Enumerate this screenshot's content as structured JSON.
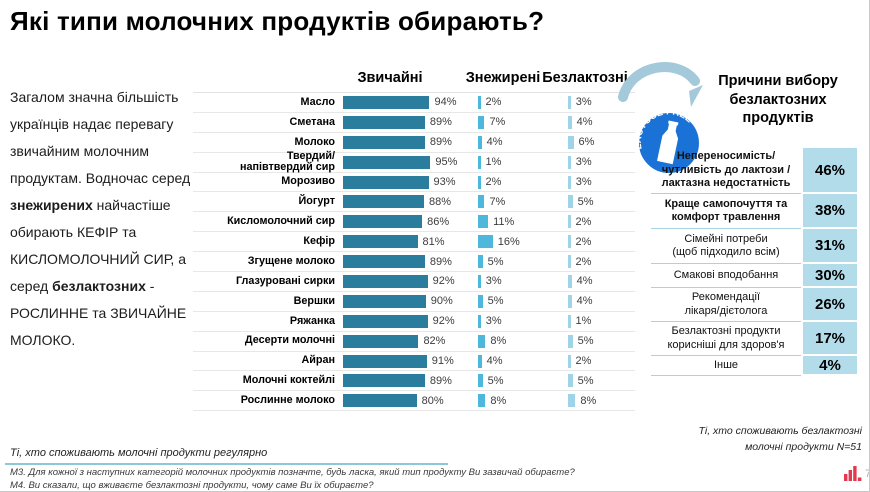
{
  "title": "Які типи молочних продуктів обирають?",
  "intro_parts": [
    {
      "text": "Загалом значна більшість українців надає перевагу звичайним молочним продуктам. Водночас серед ",
      "bold": false
    },
    {
      "text": "знежирених",
      "bold": true
    },
    {
      "text": " найчастіше обирають КЕФІР та КИСЛОМОЛОЧНИЙ СИР, а серед ",
      "bold": false
    },
    {
      "text": "безлактозних",
      "bold": true
    },
    {
      "text": " - РОСЛИННЕ та ЗВИЧАЙНЕ МОЛОКО.",
      "bold": false
    }
  ],
  "chart_data": {
    "type": "bar",
    "orientation": "horizontal",
    "unit": "%",
    "columns": [
      "Звичайні",
      "Знежирені",
      "Безлактозні"
    ],
    "categories": [
      "Масло",
      "Сметана",
      "Молоко",
      "Твердий/\nнапівтвердий сир",
      "Морозиво",
      "Йогурт",
      "Кисломолочний сир",
      "Кефір",
      "Згущене молоко",
      "Глазуровані сирки",
      "Вершки",
      "Ряжанка",
      "Десерти молочні",
      "Айран",
      "Молочні коктейлі",
      "Рослинне молоко"
    ],
    "series": [
      {
        "name": "Звичайні",
        "color": "#2a7d9c",
        "values": [
          94,
          89,
          89,
          95,
          93,
          88,
          86,
          81,
          89,
          92,
          90,
          92,
          82,
          91,
          89,
          80
        ]
      },
      {
        "name": "Знежирені",
        "color": "#4db8dc",
        "values": [
          2,
          7,
          4,
          1,
          2,
          7,
          11,
          16,
          5,
          3,
          5,
          3,
          8,
          4,
          5,
          8
        ]
      },
      {
        "name": "Безлактозні",
        "color": "#9fd4e8",
        "values": [
          3,
          4,
          6,
          3,
          3,
          5,
          2,
          2,
          2,
          4,
          4,
          1,
          5,
          2,
          5,
          8
        ]
      }
    ]
  },
  "reasons_panel": {
    "title": "Причини вибору безлактозних продуктів",
    "badge_text": "LACTOSE FREE",
    "items": [
      {
        "label": "Непереносимість/\nчутливість до лактози /\nлактазна недостатність",
        "value": "46%",
        "bold": true
      },
      {
        "label": "Краще самопочуття та\nкомфорт травлення",
        "value": "38%",
        "bold": true
      },
      {
        "label": "Сімейні потреби\n(щоб підходило всім)",
        "value": "31%",
        "bold": false
      },
      {
        "label": "Смакові вподобання",
        "value": "30%",
        "bold": false
      },
      {
        "label": "Рекомендації\nлікаря/дієтолога",
        "value": "26%",
        "bold": false
      },
      {
        "label": "Безлактозні продукти\nкорисніші для здоров'я",
        "value": "17%",
        "bold": false
      },
      {
        "label": "Інше",
        "value": "4%",
        "bold": false
      }
    ]
  },
  "footer": {
    "left_note": "Ті, хто споживають молочні продукти регулярно",
    "question_m3": "М3. Для кожної з наступних категорій молочних продуктів позначте, будь ласка, який тип продукту Ви зазвичай обираєте?",
    "question_m4": "М4. Ви сказали, що вживаєте безлактозні продукти, чому саме Ви їх обираєте?",
    "right_note": "Ті, хто споживають безлактозні\nмолочні продукти N=51",
    "page_number": "7"
  },
  "colors": {
    "bar_regular": "#2a7d9c",
    "bar_skim": "#4db8dc",
    "bar_lactose_free": "#9fd4e8",
    "value_cell_bg": "#b3dcea",
    "badge_blue": "#1b72d6",
    "arrow_blue": "#a3c9da",
    "logo_red": "#e23950"
  }
}
